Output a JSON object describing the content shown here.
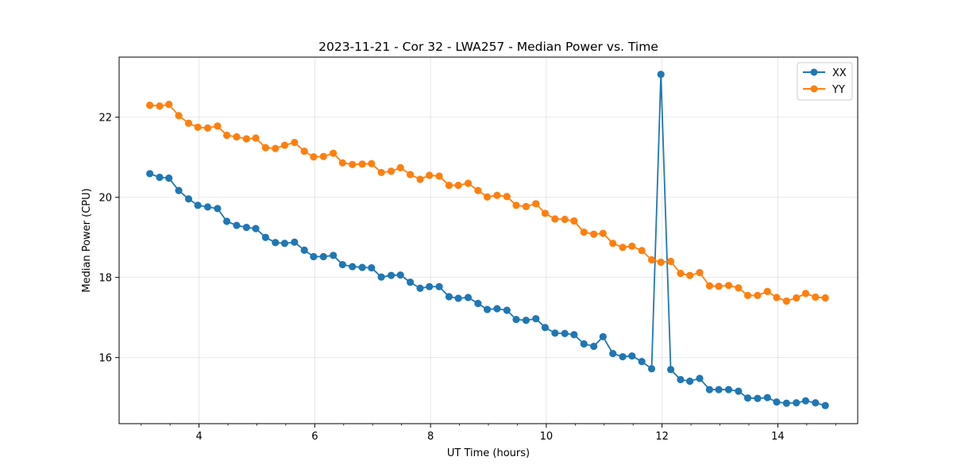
{
  "chart_data": {
    "type": "line",
    "title": "2023-11-21 - Cor 32 - LWA257 - Median Power vs. Time",
    "xlabel": "UT Time (hours)",
    "ylabel": "Median Power (CPU)",
    "xlim": [
      2.62,
      15.38
    ],
    "ylim": [
      14.35,
      23.5
    ],
    "xticks": [
      4,
      6,
      8,
      10,
      12,
      14
    ],
    "xtick_labels": [
      "4",
      "6",
      "8",
      "10",
      "12",
      "14"
    ],
    "x_minor_step": 0.5,
    "yticks": [
      16,
      18,
      20,
      22
    ],
    "ytick_labels": [
      "16",
      "18",
      "20",
      "22"
    ],
    "grid": true,
    "legend_position": "top-right",
    "x": [
      3.15,
      3.32,
      3.48,
      3.65,
      3.82,
      3.98,
      4.15,
      4.32,
      4.48,
      4.65,
      4.82,
      4.98,
      5.15,
      5.32,
      5.48,
      5.65,
      5.82,
      5.98,
      6.15,
      6.32,
      6.48,
      6.65,
      6.82,
      6.98,
      7.15,
      7.32,
      7.48,
      7.65,
      7.82,
      7.98,
      8.15,
      8.32,
      8.48,
      8.65,
      8.82,
      8.98,
      9.15,
      9.32,
      9.48,
      9.65,
      9.82,
      9.98,
      10.15,
      10.32,
      10.48,
      10.65,
      10.82,
      10.98,
      11.15,
      11.32,
      11.48,
      11.65,
      11.82,
      11.98,
      12.15,
      12.32,
      12.48,
      12.65,
      12.82,
      12.98,
      13.15,
      13.32,
      13.48,
      13.65,
      13.82,
      13.98,
      14.15,
      14.32,
      14.48,
      14.65,
      14.82
    ],
    "series": [
      {
        "name": "XX",
        "color": "#1f77b4",
        "values": [
          20.59,
          20.5,
          20.48,
          20.17,
          19.96,
          19.8,
          19.76,
          19.72,
          19.4,
          19.3,
          19.25,
          19.22,
          19.0,
          18.87,
          18.85,
          18.88,
          18.68,
          18.52,
          18.52,
          18.55,
          18.32,
          18.27,
          18.25,
          18.24,
          18.01,
          18.05,
          18.06,
          17.88,
          17.73,
          17.77,
          17.77,
          17.52,
          17.48,
          17.5,
          17.35,
          17.2,
          17.22,
          17.18,
          16.95,
          16.93,
          16.97,
          16.75,
          16.61,
          16.6,
          16.57,
          16.34,
          16.28,
          16.52,
          16.1,
          16.02,
          16.04,
          15.9,
          15.72,
          23.07,
          15.7,
          15.45,
          15.41,
          15.48,
          15.2,
          15.2,
          15.2,
          15.16,
          14.99,
          14.98,
          15.0,
          14.89,
          14.86,
          14.87,
          14.92,
          14.87,
          14.8
        ]
      },
      {
        "name": "YY",
        "color": "#ff7f0e",
        "values": [
          22.3,
          22.28,
          22.32,
          22.04,
          21.85,
          21.75,
          21.73,
          21.78,
          21.55,
          21.51,
          21.46,
          21.48,
          21.24,
          21.22,
          21.3,
          21.37,
          21.15,
          21.01,
          21.02,
          21.1,
          20.86,
          20.82,
          20.83,
          20.84,
          20.62,
          20.65,
          20.74,
          20.57,
          20.45,
          20.55,
          20.53,
          20.3,
          20.3,
          20.35,
          20.17,
          20.01,
          20.05,
          20.02,
          19.8,
          19.77,
          19.84,
          19.6,
          19.46,
          19.45,
          19.41,
          19.13,
          19.08,
          19.1,
          18.85,
          18.75,
          18.78,
          18.67,
          18.44,
          18.38,
          18.4,
          18.1,
          18.05,
          18.12,
          17.79,
          17.78,
          17.8,
          17.74,
          17.55,
          17.55,
          17.65,
          17.5,
          17.41,
          17.49,
          17.6,
          17.51,
          17.49
        ]
      }
    ]
  }
}
